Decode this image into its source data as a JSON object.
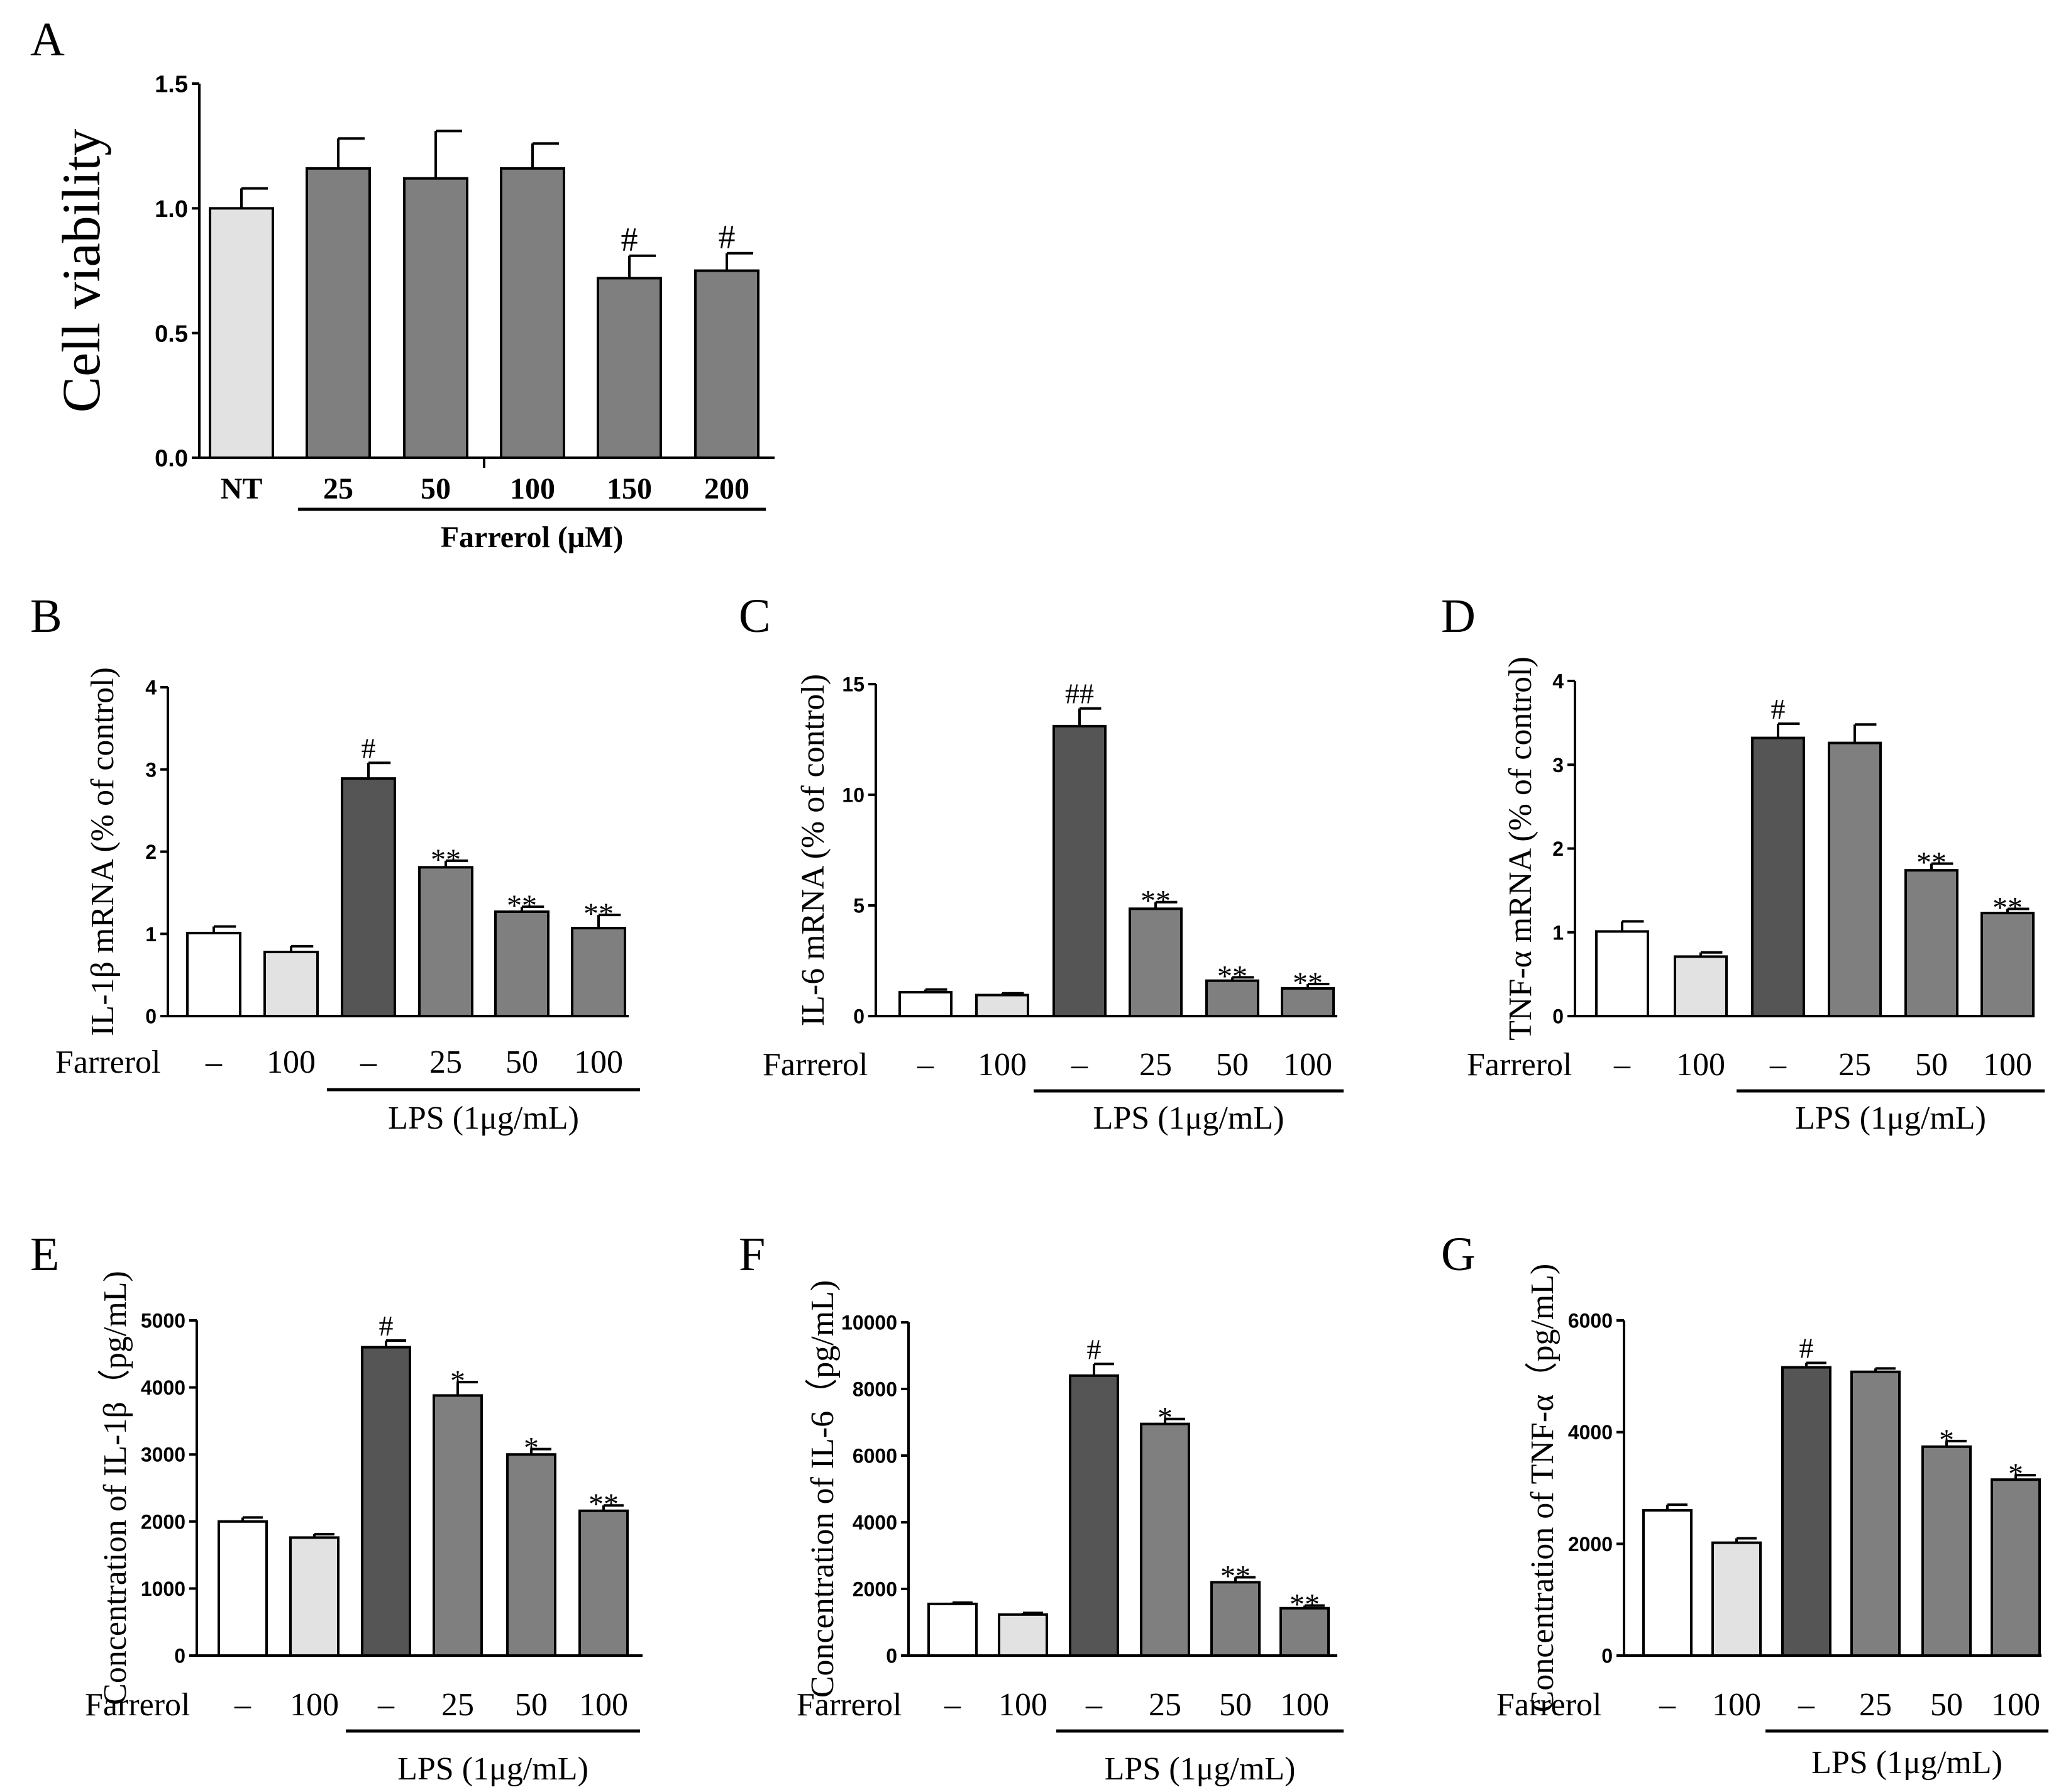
{
  "colors": {
    "white": "#ffffff",
    "light": "#e2e2e2",
    "dark": "#555555",
    "mid": "#7f7f7f",
    "axis": "#000000"
  },
  "chart_data": [
    {
      "panel": "A",
      "type": "bar",
      "ylabel": "Cell viability",
      "yticks": [
        "0.0",
        "0.5",
        "1.0",
        "1.5"
      ],
      "ylim": [
        0,
        1.5
      ],
      "categories": [
        "NT",
        "25",
        "50",
        "100",
        "150",
        "200"
      ],
      "values": [
        1.0,
        1.16,
        1.12,
        1.16,
        0.72,
        0.75
      ],
      "errors": [
        0.08,
        0.12,
        0.19,
        0.1,
        0.09,
        0.07
      ],
      "fills": [
        "light",
        "mid",
        "mid",
        "mid",
        "mid",
        "mid"
      ],
      "annotations": [
        "",
        "",
        "",
        "",
        "#",
        "#"
      ],
      "group_label": "Farrerol (μM)"
    },
    {
      "panel": "B",
      "type": "bar",
      "ylabel": "IL-1β mRNA (% of control)",
      "yticks": [
        "0",
        "1",
        "2",
        "3",
        "4"
      ],
      "ylim": [
        0,
        4
      ],
      "row_label": "Farrerol",
      "categories": [
        "–",
        "100",
        "–",
        "25",
        "50",
        "100"
      ],
      "values": [
        1.01,
        0.78,
        2.89,
        1.81,
        1.27,
        1.07
      ],
      "errors": [
        0.08,
        0.07,
        0.19,
        0.08,
        0.06,
        0.16
      ],
      "fills": [
        "white",
        "light",
        "dark",
        "mid",
        "mid",
        "mid"
      ],
      "annotations": [
        "",
        "",
        "#",
        "**",
        "**",
        "**"
      ],
      "group_label": "LPS (1μg/mL)"
    },
    {
      "panel": "C",
      "type": "bar",
      "ylabel": "IL-6 mRNA (% of control)",
      "yticks": [
        "0",
        "5",
        "10",
        "15"
      ],
      "ylim": [
        0,
        15
      ],
      "row_label": "Farrerol",
      "categories": [
        "–",
        "100",
        "–",
        "25",
        "50",
        "100"
      ],
      "values": [
        1.08,
        0.95,
        13.1,
        4.85,
        1.6,
        1.25
      ],
      "errors": [
        0.12,
        0.08,
        0.8,
        0.3,
        0.15,
        0.2
      ],
      "fills": [
        "white",
        "light",
        "dark",
        "mid",
        "mid",
        "mid"
      ],
      "annotations": [
        "",
        "",
        "##",
        "**",
        "**",
        "**"
      ],
      "group_label": "LPS (1μg/mL)"
    },
    {
      "panel": "D",
      "type": "bar",
      "ylabel": "TNF-α mRNA (% of control)",
      "yticks": [
        "0",
        "1",
        "2",
        "3",
        "4"
      ],
      "ylim": [
        0,
        4
      ],
      "row_label": "Farrerol",
      "categories": [
        "–",
        "100",
        "–",
        "25",
        "50",
        "100"
      ],
      "values": [
        1.01,
        0.71,
        3.32,
        3.26,
        1.74,
        1.23
      ],
      "errors": [
        0.12,
        0.05,
        0.17,
        0.22,
        0.08,
        0.05
      ],
      "fills": [
        "white",
        "light",
        "dark",
        "mid",
        "mid",
        "mid"
      ],
      "annotations": [
        "",
        "",
        "#",
        "",
        "**",
        "**"
      ],
      "group_label": "LPS (1μg/mL)"
    },
    {
      "panel": "E",
      "type": "bar",
      "ylabel": "Concentration of IL-1β（pg/mL)",
      "yticks": [
        "0",
        "1000",
        "2000",
        "3000",
        "4000",
        "5000"
      ],
      "ylim": [
        0,
        5000
      ],
      "row_label": "Farrerol",
      "categories": [
        "–",
        "100",
        "–",
        "25",
        "50",
        "100"
      ],
      "values": [
        2000,
        1760,
        4600,
        3880,
        3000,
        2160
      ],
      "errors": [
        60,
        50,
        100,
        200,
        80,
        80
      ],
      "fills": [
        "white",
        "light",
        "dark",
        "mid",
        "mid",
        "mid"
      ],
      "annotations": [
        "",
        "",
        "#",
        "*",
        "*",
        "**"
      ],
      "group_label": "LPS (1μg/mL)"
    },
    {
      "panel": "F",
      "type": "bar",
      "ylabel": "Concentration of IL-6（pg/mL)",
      "yticks": [
        "0",
        "2000",
        "4000",
        "6000",
        "8000",
        "10000"
      ],
      "ylim": [
        0,
        10000
      ],
      "row_label": "Farrerol",
      "categories": [
        "–",
        "100",
        "–",
        "25",
        "50",
        "100"
      ],
      "values": [
        1550,
        1230,
        8400,
        6950,
        2200,
        1420
      ],
      "errors": [
        40,
        50,
        350,
        150,
        150,
        80
      ],
      "fills": [
        "white",
        "light",
        "dark",
        "mid",
        "mid",
        "mid"
      ],
      "annotations": [
        "",
        "",
        "#",
        "*",
        "**",
        "**"
      ],
      "group_label": "LPS (1μg/mL)"
    },
    {
      "panel": "G",
      "type": "bar",
      "ylabel": "Concentration of TNF-α（pg/mL)",
      "yticks": [
        "0",
        "2000",
        "4000",
        "6000"
      ],
      "ylim": [
        0,
        6000
      ],
      "row_label": "Farrerol",
      "categories": [
        "–",
        "100",
        "–",
        "25",
        "50",
        "100"
      ],
      "values": [
        2600,
        2020,
        5160,
        5080,
        3740,
        3150
      ],
      "errors": [
        100,
        80,
        80,
        60,
        100,
        80
      ],
      "fills": [
        "white",
        "light",
        "dark",
        "mid",
        "mid",
        "mid"
      ],
      "annotations": [
        "",
        "",
        "#",
        "",
        "*",
        "*"
      ],
      "group_label": "LPS (1μg/mL)"
    }
  ]
}
